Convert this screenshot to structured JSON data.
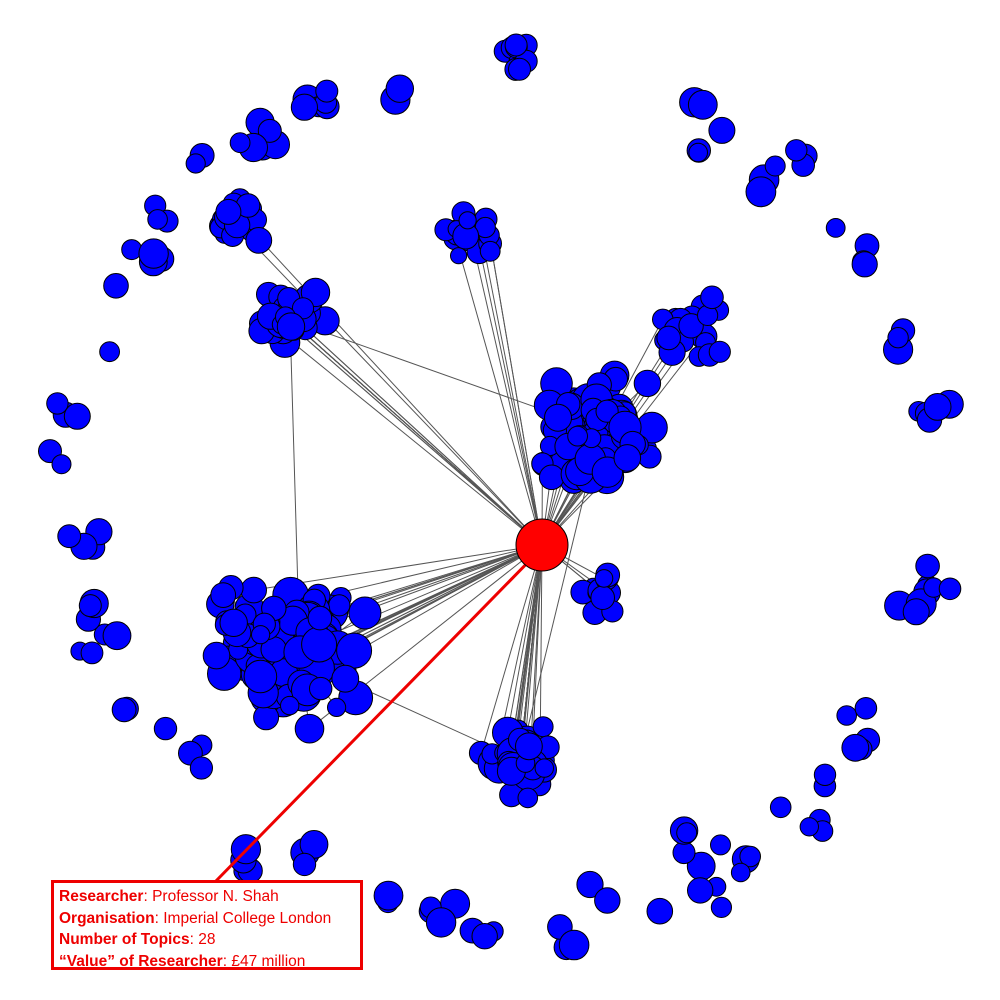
{
  "network": {
    "node_color": "#0000ff",
    "highlight_color": "#ff0000",
    "edge_color": "#555555",
    "callout_color": "#ee0000"
  },
  "info": {
    "researcher_label": "Researcher",
    "researcher_value": "Professor N. Shah",
    "organisation_label": "Organisation",
    "organisation_value": "Imperial College London",
    "topics_label": "Number of Topics",
    "topics_value": "28",
    "value_label": "“Value” of Researcher",
    "value_value": "£47 million"
  }
}
